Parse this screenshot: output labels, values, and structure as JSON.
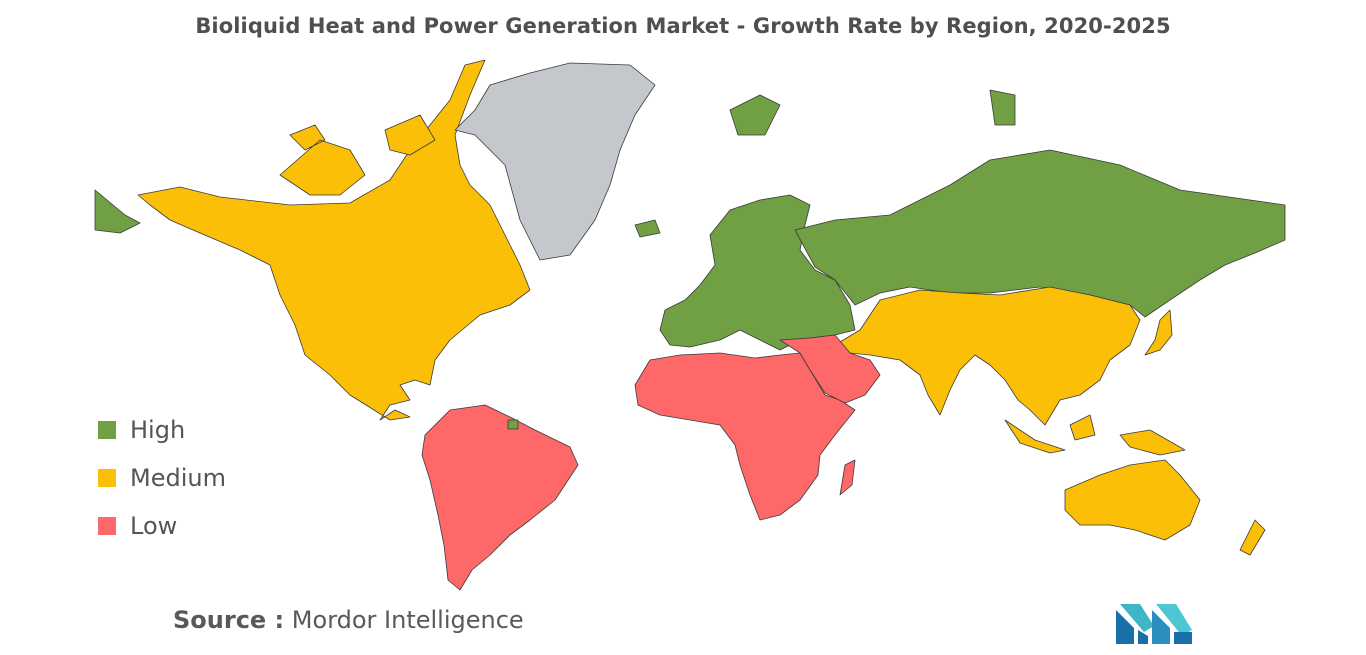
{
  "title": "Bioliquid Heat and Power Generation Market - Growth Rate by Region, 2020-2025",
  "legend": [
    {
      "label": "High",
      "color": "#70a043"
    },
    {
      "label": "Medium",
      "color": "#fbbf08"
    },
    {
      "label": "Low",
      "color": "#fe6868"
    }
  ],
  "colors": {
    "no_data": "#c4c7cc",
    "border": "#3a3a3a"
  },
  "regions": [
    {
      "name": "North America",
      "level": "Medium"
    },
    {
      "name": "Europe",
      "level": "High"
    },
    {
      "name": "Russia",
      "level": "High"
    },
    {
      "name": "Asia-Pacific",
      "level": "Medium"
    },
    {
      "name": "South America",
      "level": "Low"
    },
    {
      "name": "Middle East and Africa",
      "level": "Low"
    }
  ],
  "source": {
    "label": "Source :",
    "text": "Mordor Intelligence"
  },
  "logo": {
    "icon": "mordor-intelligence-logo"
  }
}
